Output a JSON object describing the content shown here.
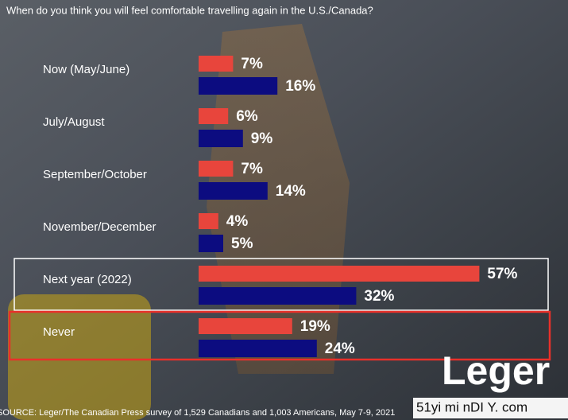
{
  "chart_data": {
    "type": "bar",
    "orientation": "horizontal",
    "title": "When do you think you will feel comfortable travelling again in the U.S./Canada?",
    "categories": [
      "Now (May/June)",
      "July/August",
      "September/October",
      "November/December",
      "Next year (2022)",
      "Never"
    ],
    "series": [
      {
        "color": "#e8453c",
        "values": [
          7,
          6,
          7,
          4,
          57,
          19
        ],
        "value_labels": [
          "7%",
          "6%",
          "7%",
          "4%",
          "57%",
          "19%"
        ]
      },
      {
        "color": "#0c0c80",
        "values": [
          16,
          9,
          14,
          5,
          32,
          24
        ],
        "value_labels": [
          "16%",
          "9%",
          "14%",
          "5%",
          "32%",
          "24%"
        ]
      }
    ],
    "source": "SOURCE: Leger/The Canadian Press survey of 1,529 Canadians and 1,003 Americans, May 7-9, 2021",
    "logo": "Leger",
    "watermark": "51yi mi nDI Y. com"
  }
}
